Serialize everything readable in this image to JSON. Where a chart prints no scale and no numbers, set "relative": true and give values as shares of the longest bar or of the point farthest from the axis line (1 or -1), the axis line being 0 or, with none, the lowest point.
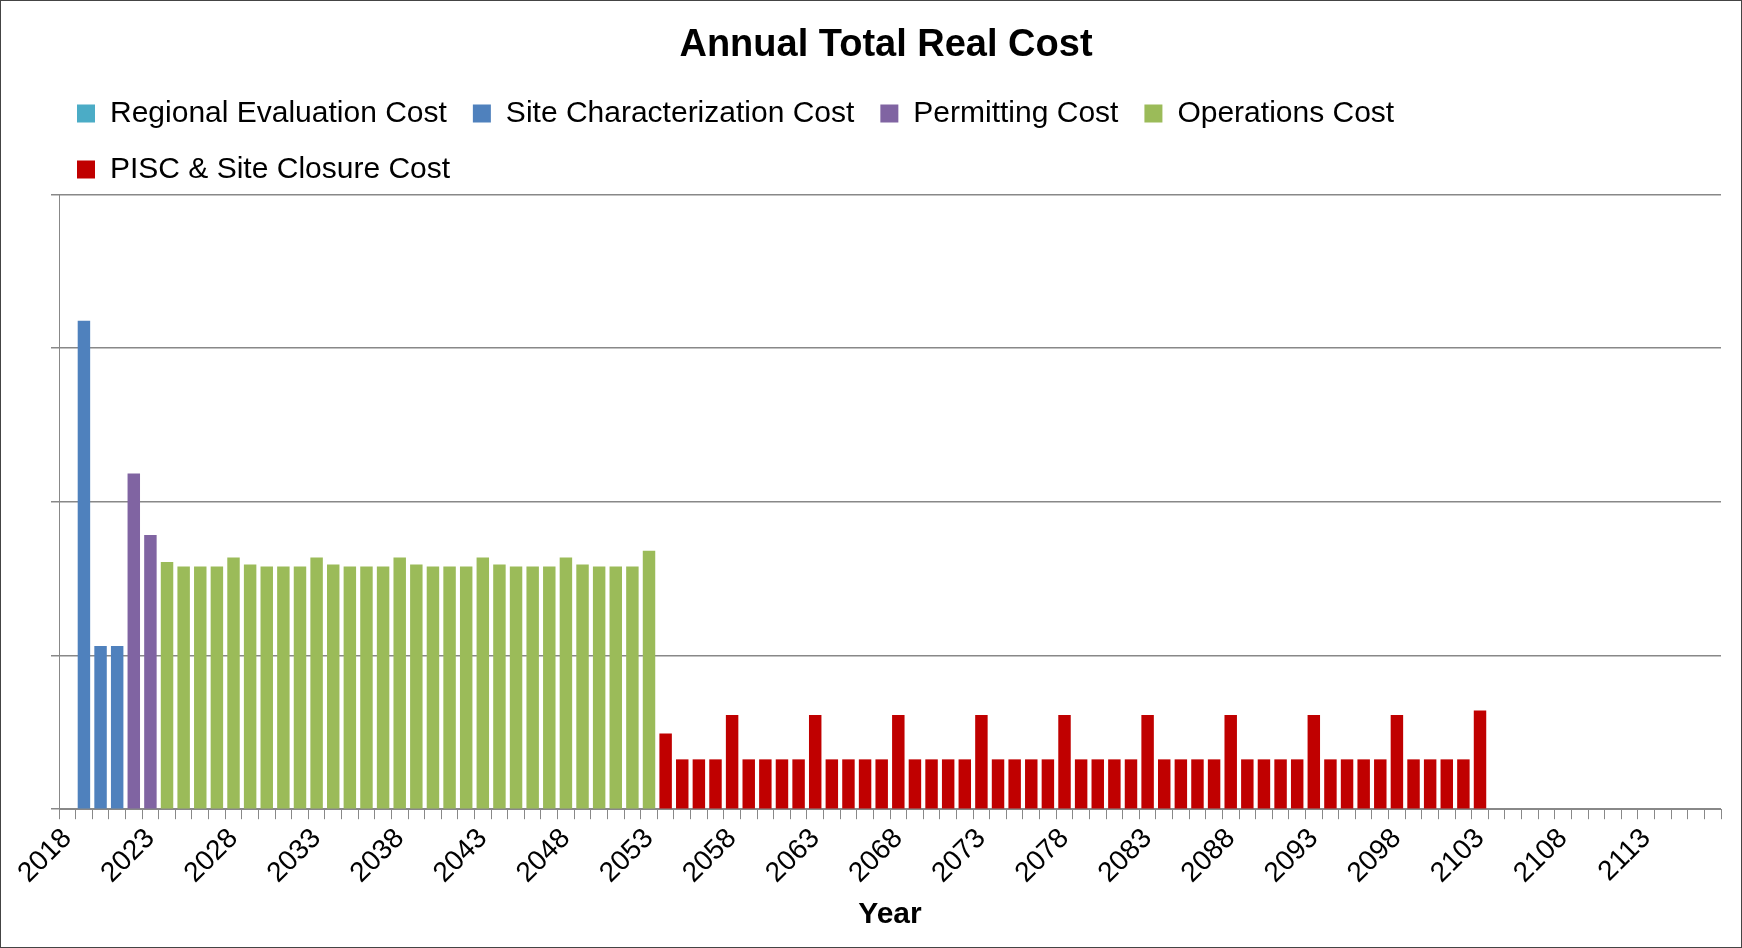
{
  "chart_data": {
    "type": "bar",
    "title": "Annual Total Real Cost",
    "xlabel": "Year",
    "relative": true,
    "stacked": true,
    "grid": "y",
    "legend": "top",
    "categories": [
      "2018",
      null,
      null,
      null,
      null,
      "2023",
      null,
      null,
      null,
      null,
      "2028",
      null,
      null,
      null,
      null,
      "2033",
      null,
      null,
      null,
      null,
      "2038",
      null,
      null,
      null,
      null,
      "2043",
      null,
      null,
      null,
      null,
      "2048",
      null,
      null,
      null,
      null,
      "2053",
      null,
      null,
      null,
      null,
      "2058",
      null,
      null,
      null,
      null,
      "2063",
      null,
      null,
      null,
      null,
      "2068",
      null,
      null,
      null,
      null,
      "2073",
      null,
      null,
      null,
      null,
      "2078",
      null,
      null,
      null,
      null,
      "2083",
      null,
      null,
      null,
      null,
      "2088",
      null,
      null,
      null,
      null,
      "2093",
      null,
      null,
      null,
      null,
      "2098",
      null,
      null,
      null,
      null,
      "2103",
      null,
      null,
      null,
      null,
      "2108",
      null,
      null,
      null,
      null,
      "2113",
      null,
      null,
      null,
      null
    ],
    "series": [
      {
        "name": "Regional Evaluation Cost",
        "color": "#4bacc6",
        "values": [
          null,
          null,
          null,
          null,
          null,
          null,
          null,
          null,
          null,
          null,
          null,
          null,
          null,
          null,
          null,
          null,
          null,
          null,
          null,
          null,
          null,
          null,
          null,
          null,
          null,
          null,
          null,
          null,
          null,
          null,
          null,
          null,
          null,
          null,
          null,
          null,
          null,
          null,
          null,
          null,
          null,
          null,
          null,
          null,
          null,
          null,
          null,
          null,
          null,
          null,
          null,
          null,
          null,
          null,
          null,
          null,
          null,
          null,
          null,
          null,
          null,
          null,
          null,
          null,
          null,
          null,
          null,
          null,
          null,
          null,
          null,
          null,
          null,
          null,
          null,
          null,
          null,
          null,
          null,
          null,
          null,
          null,
          null,
          null,
          null,
          null,
          null,
          null,
          null,
          null,
          null,
          null,
          null,
          null,
          null,
          null,
          null,
          null,
          null,
          null
        ]
      },
      {
        "name": "Site Characterization Cost",
        "color": "#4f81bd",
        "values": [
          null,
          1,
          0.334,
          0.334,
          null,
          null,
          null,
          null,
          null,
          null,
          null,
          null,
          null,
          null,
          null,
          null,
          null,
          null,
          null,
          null,
          null,
          null,
          null,
          null,
          null,
          null,
          null,
          null,
          null,
          null,
          null,
          null,
          null,
          null,
          null,
          null,
          null,
          null,
          null,
          null,
          null,
          null,
          null,
          null,
          null,
          null,
          null,
          null,
          null,
          null,
          null,
          null,
          null,
          null,
          null,
          null,
          null,
          null,
          null,
          null,
          null,
          null,
          null,
          null,
          null,
          null,
          null,
          null,
          null,
          null,
          null,
          null,
          null,
          null,
          null,
          null,
          null,
          null,
          null,
          null,
          null,
          null,
          null,
          null,
          null,
          null,
          null,
          null,
          null,
          null,
          null,
          null,
          null,
          null,
          null,
          null,
          null,
          null,
          null,
          null
        ]
      },
      {
        "name": "Permitting Cost",
        "color": "#8064a2",
        "values": [
          null,
          null,
          null,
          null,
          0.687,
          0.561,
          null,
          null,
          null,
          null,
          null,
          null,
          null,
          null,
          null,
          null,
          null,
          null,
          null,
          null,
          null,
          null,
          null,
          null,
          null,
          null,
          null,
          null,
          null,
          null,
          null,
          null,
          null,
          null,
          null,
          null,
          null,
          null,
          null,
          null,
          null,
          null,
          null,
          null,
          null,
          null,
          null,
          null,
          null,
          null,
          null,
          null,
          null,
          null,
          null,
          null,
          null,
          null,
          null,
          null,
          null,
          null,
          null,
          null,
          null,
          null,
          null,
          null,
          null,
          null,
          null,
          null,
          null,
          null,
          null,
          null,
          null,
          null,
          null,
          null,
          null,
          null,
          null,
          null,
          null,
          null,
          null,
          null,
          null,
          null,
          null,
          null,
          null,
          null,
          null,
          null,
          null,
          null,
          null,
          null
        ]
      },
      {
        "name": "Operations Cost",
        "color": "#9bbb59",
        "values": [
          null,
          null,
          null,
          null,
          null,
          null,
          0.506,
          0.497,
          0.497,
          0.497,
          0.515,
          0.501,
          0.497,
          0.497,
          0.497,
          0.515,
          0.501,
          0.497,
          0.497,
          0.497,
          0.515,
          0.501,
          0.497,
          0.497,
          0.497,
          0.515,
          0.501,
          0.497,
          0.497,
          0.497,
          0.515,
          0.501,
          0.497,
          0.497,
          0.497,
          0.529,
          null,
          null,
          null,
          null,
          null,
          null,
          null,
          null,
          null,
          null,
          null,
          null,
          null,
          null,
          null,
          null,
          null,
          null,
          null,
          null,
          null,
          null,
          null,
          null,
          null,
          null,
          null,
          null,
          null,
          null,
          null,
          null,
          null,
          null,
          null,
          null,
          null,
          null,
          null,
          null,
          null,
          null,
          null,
          null,
          null,
          null,
          null,
          null,
          null,
          null,
          null,
          null,
          null,
          null,
          null,
          null,
          null,
          null,
          null,
          null,
          null,
          null,
          null,
          null
        ]
      },
      {
        "name": "PISC & Site Closure Cost",
        "color": "#c00000",
        "values": [
          null,
          null,
          null,
          null,
          null,
          null,
          null,
          null,
          null,
          null,
          null,
          null,
          null,
          null,
          null,
          null,
          null,
          null,
          null,
          null,
          null,
          null,
          null,
          null,
          null,
          null,
          null,
          null,
          null,
          null,
          null,
          null,
          null,
          null,
          null,
          null,
          0.155,
          0.102,
          0.102,
          0.102,
          0.193,
          0.102,
          0.102,
          0.102,
          0.102,
          0.193,
          0.102,
          0.102,
          0.102,
          0.102,
          0.193,
          0.102,
          0.102,
          0.102,
          0.102,
          0.193,
          0.102,
          0.102,
          0.102,
          0.102,
          0.193,
          0.102,
          0.102,
          0.102,
          0.102,
          0.193,
          0.102,
          0.102,
          0.102,
          0.102,
          0.193,
          0.102,
          0.102,
          0.102,
          0.102,
          0.193,
          0.102,
          0.102,
          0.102,
          0.102,
          0.193,
          0.102,
          0.102,
          0.102,
          0.102,
          0.202,
          null,
          null,
          null,
          null,
          null,
          null,
          null,
          null,
          null,
          null,
          null,
          null,
          null,
          null
        ]
      }
    ]
  }
}
